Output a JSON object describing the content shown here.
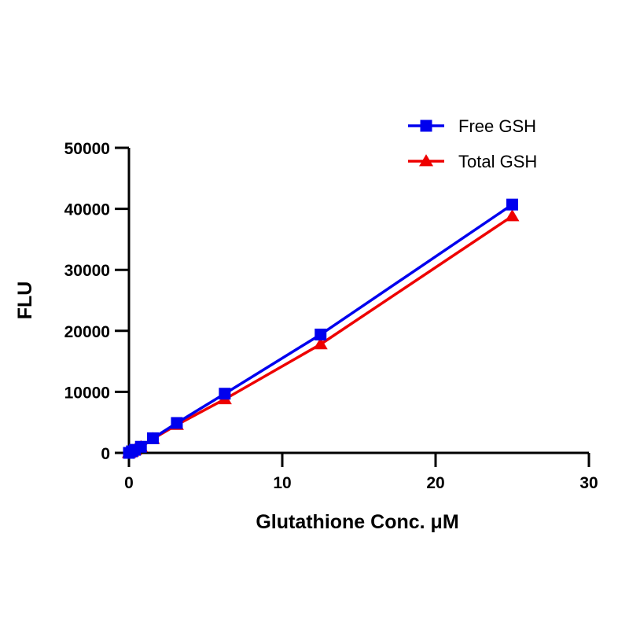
{
  "chart_data": {
    "type": "line",
    "xlabel": "Glutathione Conc. μM",
    "ylabel": "FLU",
    "xlim": [
      0,
      30
    ],
    "ylim": [
      0,
      50000
    ],
    "xticks": [
      0,
      10,
      20,
      30
    ],
    "yticks": [
      0,
      10000,
      20000,
      30000,
      40000,
      50000
    ],
    "xtick_labels": [
      "0",
      "10",
      "20",
      "30"
    ],
    "ytick_labels": [
      "0",
      "10000",
      "20000",
      "30000",
      "40000",
      "50000"
    ],
    "grid": false,
    "legend_position": "top-right",
    "series": [
      {
        "name": "Free GSH",
        "color": "#0000ee",
        "marker": "square",
        "x": [
          0,
          0.1953,
          0.3906,
          0.7813,
          1.5625,
          3.125,
          6.25,
          12.5,
          25
        ],
        "y": [
          0,
          250,
          500,
          1000,
          2400,
          4900,
          9700,
          19400,
          40700
        ]
      },
      {
        "name": "Total GSH",
        "color": "#ee0000",
        "marker": "triangle",
        "x": [
          0,
          0.1953,
          0.3906,
          0.7813,
          1.5625,
          3.125,
          6.25,
          12.5,
          25
        ],
        "y": [
          0,
          230,
          470,
          950,
          2300,
          4600,
          8800,
          17800,
          38800
        ]
      }
    ]
  }
}
